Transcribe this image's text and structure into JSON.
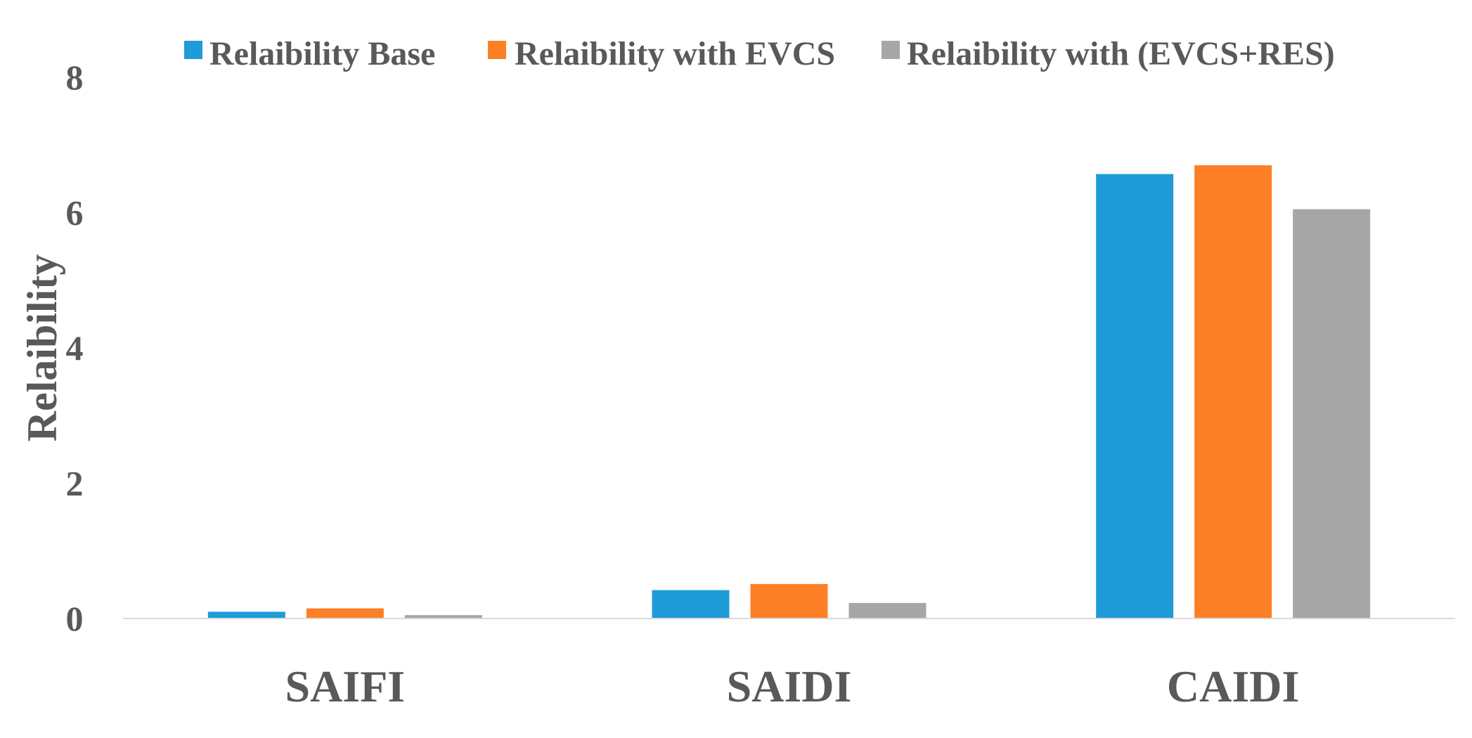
{
  "chart_data": {
    "type": "bar",
    "title": "",
    "xlabel": "",
    "ylabel": "Relaibility",
    "categories": [
      "SAIFI",
      "SAIDI",
      "CAIDI"
    ],
    "ylim": [
      0,
      8
    ],
    "yticks": [
      0,
      2,
      4,
      6,
      8
    ],
    "grid": false,
    "legend_position": "top",
    "series": [
      {
        "name": "Relaibility Base",
        "color": "#1f9bd7",
        "values": [
          0.1,
          0.42,
          6.57
        ]
      },
      {
        "name": "Relaibility with EVCS",
        "color": "#fd7f26",
        "values": [
          0.15,
          0.51,
          6.7
        ]
      },
      {
        "name": "Relaibility with (EVCS+RES)",
        "color": "#a6a6a6",
        "values": [
          0.05,
          0.23,
          6.05
        ]
      }
    ]
  }
}
